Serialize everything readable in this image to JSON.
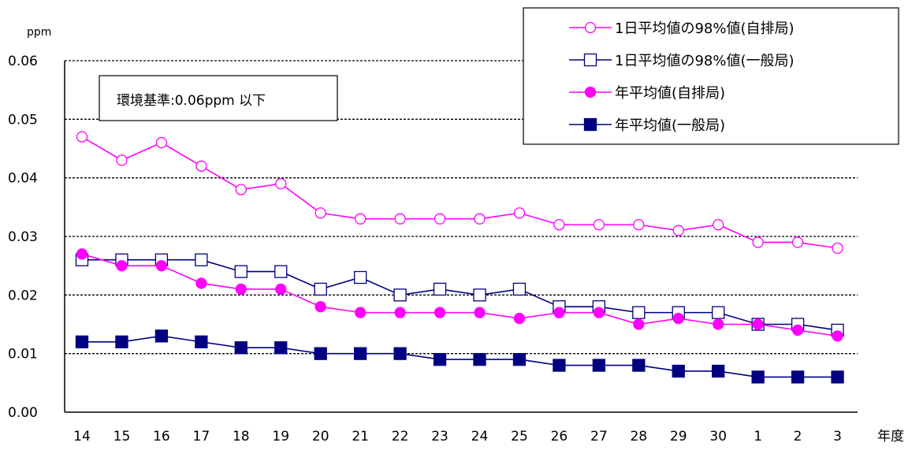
{
  "chart_data": {
    "type": "line",
    "ylabel": "ppm",
    "xlabel": "年度",
    "ylim": [
      0,
      0.06
    ],
    "yticks": [
      "0.00",
      "0.01",
      "0.02",
      "0.03",
      "0.04",
      "0.05",
      "0.06"
    ],
    "categories": [
      "14",
      "15",
      "16",
      "17",
      "18",
      "19",
      "20",
      "21",
      "22",
      "23",
      "24",
      "25",
      "26",
      "27",
      "28",
      "29",
      "30",
      "1",
      "2",
      "3"
    ],
    "annotation": "環境基準:0.06ppm 以下",
    "grid": "horizontal dashed",
    "legend_position": "top-right",
    "series": [
      {
        "name": "1日平均値の98%値(自排局)",
        "marker": "circle-open",
        "color": "#ff00ff",
        "values": [
          0.047,
          0.043,
          0.046,
          0.042,
          0.038,
          0.039,
          0.034,
          0.033,
          0.033,
          0.033,
          0.033,
          0.034,
          0.032,
          0.032,
          0.032,
          0.031,
          0.032,
          0.029,
          0.029,
          0.028
        ]
      },
      {
        "name": "1日平均値の98%値(一般局)",
        "marker": "square-open",
        "color": "#000080",
        "values": [
          0.026,
          0.026,
          0.026,
          0.026,
          0.024,
          0.024,
          0.021,
          0.023,
          0.02,
          0.021,
          0.02,
          0.021,
          0.018,
          0.018,
          0.017,
          0.017,
          0.017,
          0.015,
          0.015,
          0.014
        ]
      },
      {
        "name": "年平均値(自排局)",
        "marker": "circle-filled",
        "color": "#ff00ff",
        "values": [
          0.027,
          0.025,
          0.025,
          0.022,
          0.021,
          0.021,
          0.018,
          0.017,
          0.017,
          0.017,
          0.017,
          0.016,
          0.017,
          0.017,
          0.015,
          0.016,
          0.015,
          0.015,
          0.014,
          0.013
        ]
      },
      {
        "name": "年平均値(一般局)",
        "marker": "square-filled",
        "color": "#000080",
        "values": [
          0.012,
          0.012,
          0.013,
          0.012,
          0.011,
          0.011,
          0.01,
          0.01,
          0.01,
          0.009,
          0.009,
          0.009,
          0.008,
          0.008,
          0.008,
          0.007,
          0.007,
          0.006,
          0.006,
          0.006
        ]
      }
    ]
  }
}
